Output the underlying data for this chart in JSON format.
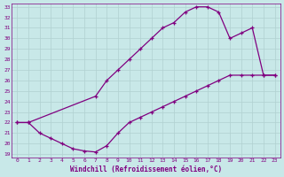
{
  "xlabel": "Windchill (Refroidissement éolien,°C)",
  "line1_x": [
    0,
    1,
    7,
    8,
    9,
    10,
    11,
    12,
    13,
    14,
    15,
    16,
    17,
    18,
    19,
    20,
    21,
    22,
    23
  ],
  "line1_y": [
    22,
    22,
    24.5,
    26,
    27,
    28,
    29,
    30,
    31,
    31.5,
    32.5,
    33,
    33,
    32.5,
    30,
    30.5,
    31,
    26.5,
    26.5
  ],
  "line2_x": [
    0,
    1,
    2,
    3,
    4,
    5,
    6,
    7,
    8,
    9,
    10,
    11,
    12,
    13,
    14,
    15,
    16,
    17,
    18,
    19,
    20,
    21,
    22,
    23
  ],
  "line2_y": [
    22,
    22,
    21,
    20.5,
    20,
    19.5,
    19.3,
    19.2,
    19.8,
    21,
    22,
    22.5,
    23,
    23.5,
    24,
    24.5,
    25,
    25.5,
    26,
    26.5,
    26.5,
    26.5,
    26.5,
    26.5
  ],
  "line_color": "#800080",
  "bg_color": "#c8e8e8",
  "grid_color": "#b0d0d0",
  "ylim": [
    19,
    33
  ],
  "xlim": [
    0,
    23
  ],
  "yticks": [
    19,
    20,
    21,
    22,
    23,
    24,
    25,
    26,
    27,
    28,
    29,
    30,
    31,
    32,
    33
  ],
  "xticks": [
    0,
    1,
    2,
    3,
    4,
    5,
    6,
    7,
    8,
    9,
    10,
    11,
    12,
    13,
    14,
    15,
    16,
    17,
    18,
    19,
    20,
    21,
    22,
    23
  ]
}
